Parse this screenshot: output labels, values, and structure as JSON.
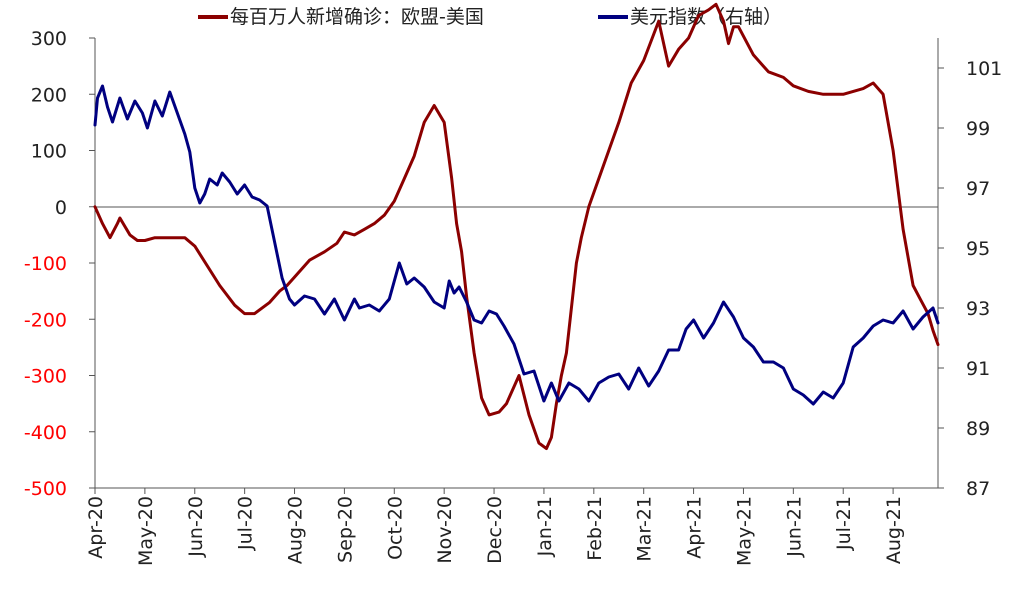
{
  "chart_data": {
    "type": "line",
    "legend": {
      "placement": "top",
      "items": [
        {
          "label": "每百万人新增确诊：欧盟-美国",
          "color": "#8B0000"
        },
        {
          "label": "美元指数（右轴）",
          "color": "#000080"
        }
      ]
    },
    "left_axis": {
      "ticks": [
        "300",
        "200",
        "100",
        "0",
        "-100",
        "-200",
        "-300",
        "-400",
        "-500"
      ],
      "ylim": [
        -500,
        300
      ],
      "negative_tick_color": "#FF0000",
      "positive_tick_color": "#222222"
    },
    "right_axis": {
      "ticks": [
        "101",
        "99",
        "97",
        "95",
        "93",
        "91",
        "89",
        "87"
      ],
      "ylim": [
        87,
        102
      ]
    },
    "x_axis": {
      "ticks": [
        "Apr-20",
        "May-20",
        "Jun-20",
        "Jul-20",
        "Aug-20",
        "Sep-20",
        "Oct-20",
        "Nov-20",
        "Dec-20",
        "Jan-21",
        "Feb-21",
        "Mar-21",
        "Apr-21",
        "May-21",
        "Jun-21",
        "Jul-21",
        "Aug-21"
      ],
      "range": [
        0,
        16.9
      ]
    },
    "grid": false,
    "series": [
      {
        "name": "每百万人新增确诊：欧盟-美国",
        "axis": "left",
        "color": "#8B0000",
        "x": [
          0,
          0.15,
          0.3,
          0.45,
          0.5,
          0.7,
          0.85,
          1.0,
          1.2,
          1.5,
          1.8,
          2.0,
          2.5,
          2.8,
          3.0,
          3.2,
          3.5,
          3.7,
          3.85,
          4.0,
          4.3,
          4.6,
          4.85,
          5.0,
          5.2,
          5.4,
          5.6,
          5.8,
          6.0,
          6.2,
          6.4,
          6.6,
          6.8,
          7.0,
          7.15,
          7.25,
          7.35,
          7.45,
          7.6,
          7.75,
          7.9,
          8.1,
          8.25,
          8.5,
          8.7,
          8.9,
          9.05,
          9.15,
          9.25,
          9.35,
          9.45,
          9.5,
          9.55,
          9.6,
          9.65,
          9.75,
          9.9,
          10.1,
          10.3,
          10.5,
          10.75,
          11.0,
          11.3,
          11.5,
          11.7,
          11.9,
          12.1,
          12.3,
          12.45,
          12.6,
          12.7,
          12.8,
          12.9,
          13.2,
          13.5,
          13.8,
          14.0,
          14.3,
          14.6,
          15.0,
          15.4,
          15.6,
          15.8,
          16.0,
          16.2,
          16.4,
          16.55,
          16.7,
          16.8,
          16.9
        ],
        "values": [
          0,
          -30,
          -55,
          -30,
          -20,
          -50,
          -60,
          -60,
          -55,
          -55,
          -55,
          -70,
          -140,
          -175,
          -190,
          -190,
          -170,
          -150,
          -140,
          -125,
          -95,
          -80,
          -65,
          -45,
          -50,
          -40,
          -30,
          -15,
          10,
          50,
          90,
          150,
          180,
          150,
          50,
          -30,
          -80,
          -160,
          -260,
          -340,
          -370,
          -365,
          -350,
          -300,
          -370,
          -420,
          -430,
          -410,
          -350,
          -300,
          -260,
          -220,
          -180,
          -140,
          -100,
          -55,
          0,
          50,
          100,
          150,
          220,
          260,
          330,
          250,
          280,
          300,
          340,
          350,
          360,
          330,
          290,
          320,
          320,
          270,
          240,
          230,
          215,
          205,
          200,
          200,
          210,
          220,
          200,
          100,
          -40,
          -140,
          -165,
          -190,
          -220,
          -245
        ]
      },
      {
        "name": "美元指数（右轴）",
        "axis": "right",
        "color": "#000080",
        "x": [
          0,
          0.05,
          0.15,
          0.25,
          0.35,
          0.5,
          0.65,
          0.8,
          0.95,
          1.05,
          1.2,
          1.35,
          1.5,
          1.65,
          1.8,
          1.9,
          2.0,
          2.1,
          2.2,
          2.3,
          2.45,
          2.55,
          2.7,
          2.85,
          3.0,
          3.15,
          3.3,
          3.45,
          3.6,
          3.75,
          3.9,
          4.0,
          4.2,
          4.4,
          4.6,
          4.8,
          5.0,
          5.2,
          5.3,
          5.5,
          5.7,
          5.9,
          6.1,
          6.25,
          6.4,
          6.6,
          6.8,
          7.0,
          7.1,
          7.2,
          7.3,
          7.45,
          7.6,
          7.75,
          7.9,
          8.05,
          8.2,
          8.4,
          8.6,
          8.8,
          9.0,
          9.15,
          9.3,
          9.5,
          9.7,
          9.9,
          10.1,
          10.3,
          10.5,
          10.7,
          10.9,
          11.1,
          11.3,
          11.5,
          11.7,
          11.85,
          12.0,
          12.2,
          12.4,
          12.6,
          12.8,
          13.0,
          13.2,
          13.4,
          13.6,
          13.8,
          14.0,
          14.2,
          14.4,
          14.6,
          14.8,
          15.0,
          15.2,
          15.4,
          15.6,
          15.8,
          16.0,
          16.2,
          16.4,
          16.6,
          16.8,
          16.9
        ],
        "values": [
          99.1,
          100.0,
          100.4,
          99.7,
          99.2,
          100.0,
          99.3,
          99.9,
          99.5,
          99.0,
          99.9,
          99.4,
          100.2,
          99.5,
          98.8,
          98.2,
          97.0,
          96.5,
          96.8,
          97.3,
          97.1,
          97.5,
          97.2,
          96.8,
          97.1,
          96.7,
          96.6,
          96.4,
          95.2,
          94.0,
          93.3,
          93.1,
          93.4,
          93.3,
          92.8,
          93.3,
          92.6,
          93.3,
          93.0,
          93.1,
          92.9,
          93.3,
          94.5,
          93.8,
          94.0,
          93.7,
          93.2,
          93.0,
          93.9,
          93.5,
          93.7,
          93.2,
          92.6,
          92.5,
          92.9,
          92.8,
          92.4,
          91.8,
          90.8,
          90.9,
          89.9,
          90.5,
          89.9,
          90.5,
          90.3,
          89.9,
          90.5,
          90.7,
          90.8,
          90.3,
          91.0,
          90.4,
          90.9,
          91.6,
          91.6,
          92.3,
          92.6,
          92.0,
          92.5,
          93.2,
          92.7,
          92.0,
          91.7,
          91.2,
          91.2,
          91.0,
          90.3,
          90.1,
          89.8,
          90.2,
          90.0,
          90.5,
          91.7,
          92.0,
          92.4,
          92.6,
          92.5,
          92.9,
          92.3,
          92.7,
          93.0,
          92.5
        ]
      }
    ]
  }
}
